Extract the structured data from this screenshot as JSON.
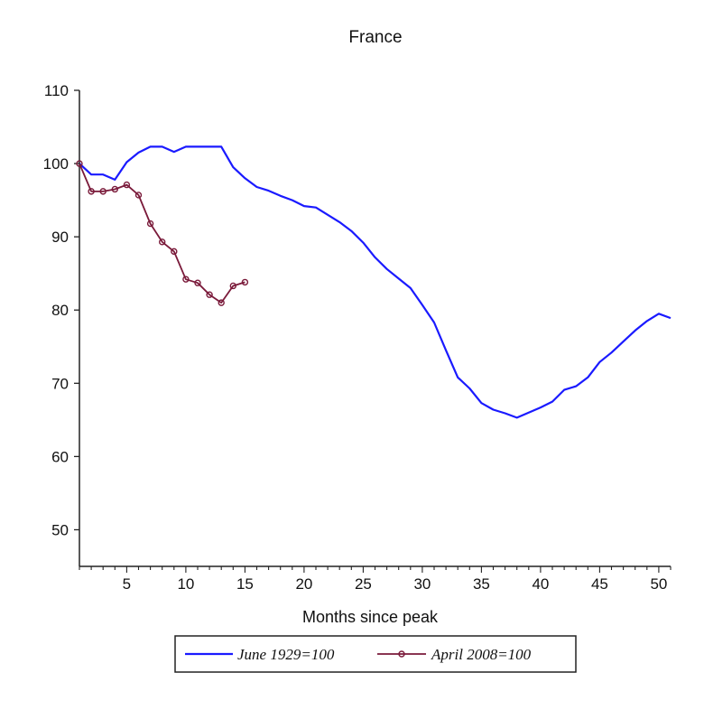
{
  "chart_data": {
    "type": "line",
    "title": "France",
    "xlabel": "Months since peak",
    "ylabel": "",
    "xlim": [
      1,
      51
    ],
    "ylim": [
      45,
      110
    ],
    "x_ticks": [
      5,
      10,
      15,
      20,
      25,
      30,
      35,
      40,
      45,
      50
    ],
    "y_ticks": [
      50,
      60,
      70,
      80,
      90,
      100,
      110
    ],
    "grid": false,
    "legend_position": "bottom",
    "series": [
      {
        "name": "June 1929=100",
        "color": "#1a1aff",
        "marker": "none",
        "x": [
          1,
          2,
          3,
          4,
          5,
          6,
          7,
          8,
          9,
          10,
          11,
          12,
          13,
          14,
          15,
          16,
          17,
          18,
          19,
          20,
          21,
          22,
          23,
          24,
          25,
          26,
          27,
          28,
          29,
          30,
          31,
          32,
          33,
          34,
          35,
          36,
          37,
          38,
          39,
          40,
          41,
          42,
          43,
          44,
          45,
          46,
          47,
          48,
          49,
          50,
          51
        ],
        "values": [
          100,
          98.5,
          98.5,
          97.8,
          100.2,
          101.5,
          102.3,
          102.3,
          101.6,
          102.3,
          102.3,
          102.3,
          102.3,
          99.5,
          98,
          96.8,
          96.3,
          95.6,
          95,
          94.2,
          94,
          93,
          92,
          90.8,
          89.2,
          87.2,
          85.6,
          84.3,
          83,
          80.7,
          78.3,
          74.5,
          70.8,
          69.3,
          67.3,
          66.4,
          65.9,
          65.3,
          66,
          66.7,
          67.5,
          69.1,
          69.6,
          70.8,
          72.9,
          74.2,
          75.7,
          77.2,
          78.5,
          79.5,
          78.9
        ]
      },
      {
        "name": "April 2008=100",
        "color": "#7a1a3a",
        "marker": "circle",
        "x": [
          1,
          2,
          3,
          4,
          5,
          6,
          7,
          8,
          9,
          10,
          11,
          12,
          13,
          14,
          15
        ],
        "values": [
          100,
          96.2,
          96.2,
          96.5,
          97.1,
          95.7,
          91.8,
          89.3,
          88,
          84.2,
          83.7,
          82.1,
          81,
          83.3,
          83.8
        ]
      }
    ]
  }
}
